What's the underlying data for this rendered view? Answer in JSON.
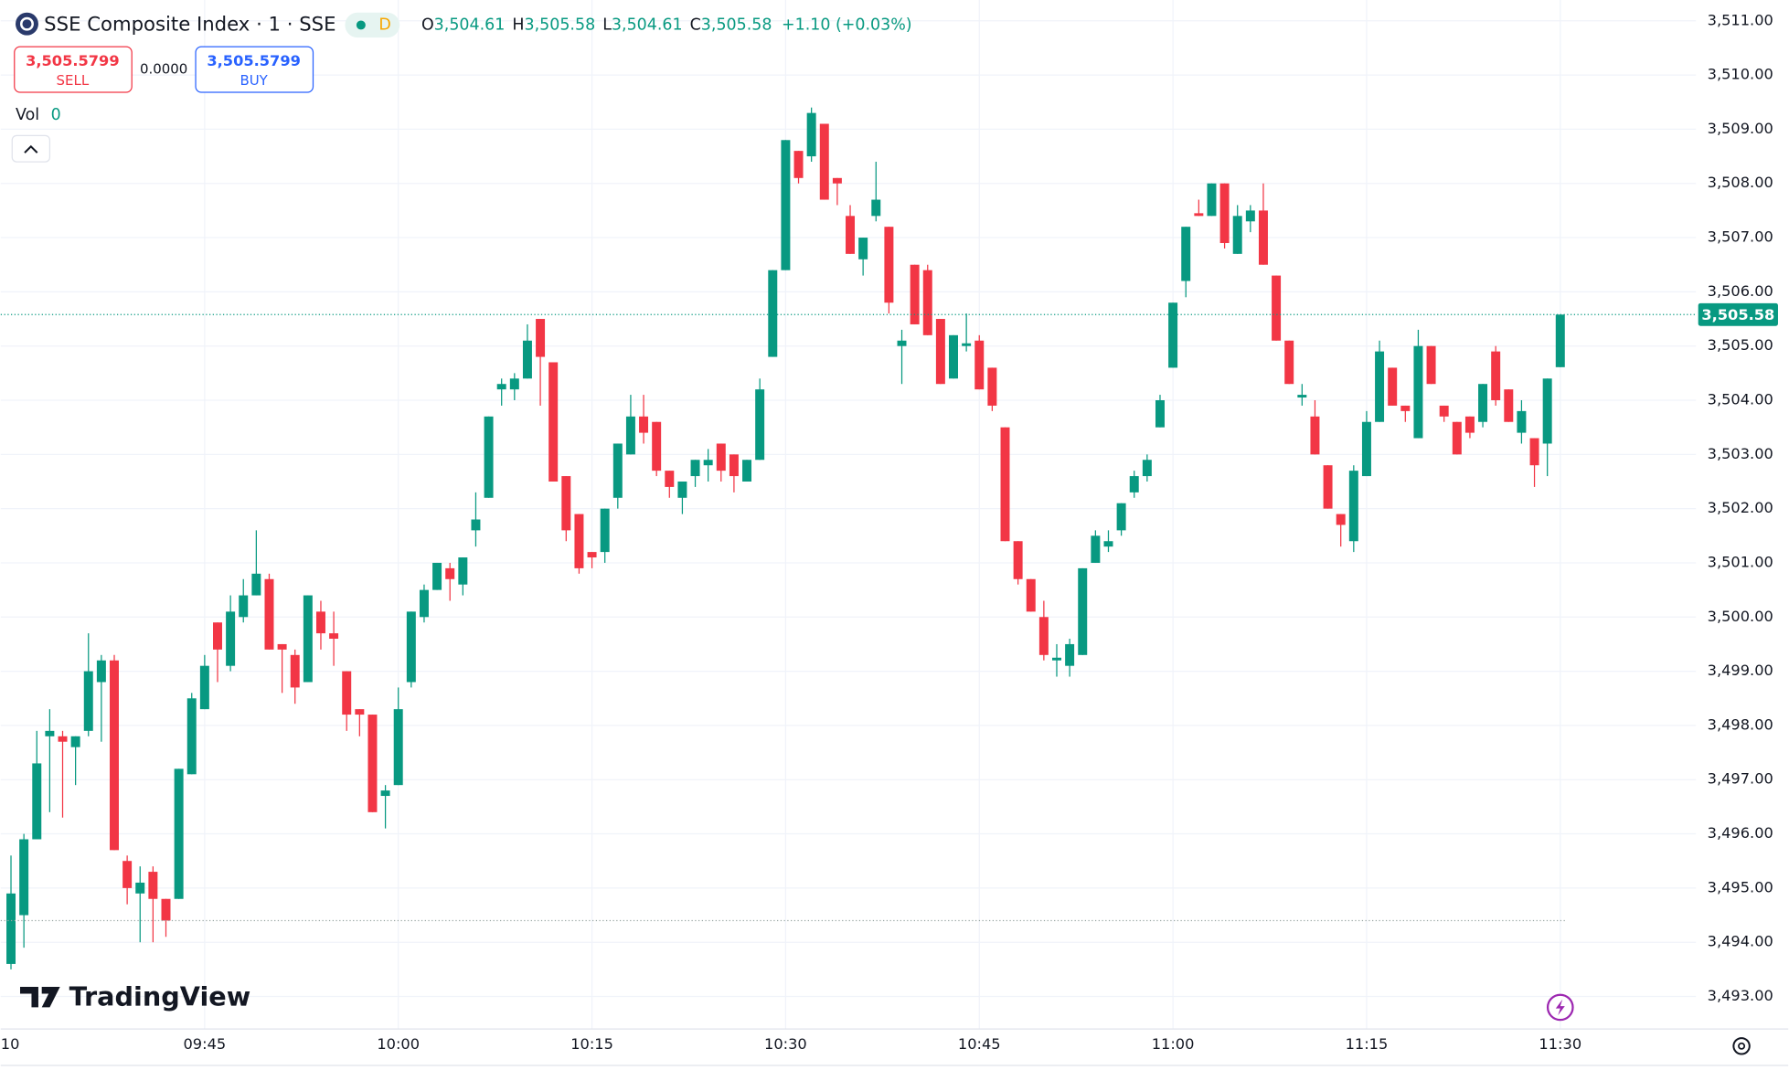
{
  "chart_data": {
    "type": "candlestick",
    "title": "SSE Composite Index · 1 · SSE",
    "up_color": "#089981",
    "down_color": "#f23645",
    "grid": true,
    "categories": [
      "10",
      null,
      null,
      null,
      null,
      null,
      null,
      null,
      null,
      null,
      null,
      null,
      null,
      null,
      null,
      "09:45",
      null,
      null,
      null,
      null,
      null,
      null,
      null,
      null,
      null,
      null,
      null,
      null,
      null,
      null,
      "10:00",
      null,
      null,
      null,
      null,
      null,
      null,
      null,
      null,
      null,
      null,
      null,
      null,
      null,
      null,
      "10:15",
      null,
      null,
      null,
      null,
      null,
      null,
      null,
      null,
      null,
      null,
      null,
      null,
      null,
      null,
      "10:30",
      null,
      null,
      null,
      null,
      null,
      null,
      null,
      null,
      null,
      null,
      null,
      null,
      null,
      null,
      "10:45",
      null,
      null,
      null,
      null,
      null,
      null,
      null,
      null,
      null,
      null,
      null,
      null,
      null,
      null,
      "11:00",
      null,
      null,
      null,
      null,
      null,
      null,
      null,
      null,
      null,
      null,
      null,
      null,
      null,
      null,
      "11:15",
      null,
      null,
      null,
      null,
      null,
      null,
      null,
      null,
      null,
      null,
      null,
      null,
      null,
      null,
      "11:30"
    ],
    "open": [
      3493.6,
      3494.5,
      3495.9,
      3497.8,
      3497.8,
      3497.6,
      3497.9,
      3498.8,
      3499.2,
      3495.5,
      3494.9,
      3495.3,
      3494.8,
      3494.8,
      3497.1,
      3498.3,
      3499.9,
      3499.1,
      3500.0,
      3500.4,
      3500.7,
      3499.5,
      3499.3,
      3498.8,
      3500.1,
      3499.7,
      3499.0,
      3498.3,
      3498.2,
      3496.7,
      3496.9,
      3498.8,
      3500.0,
      3500.5,
      3500.9,
      3500.6,
      3501.6,
      3502.2,
      3504.2,
      3504.2,
      3504.4,
      3505.5,
      3504.7,
      3502.6,
      3501.9,
      3501.2,
      3501.2,
      3502.2,
      3503.0,
      3503.7,
      3503.6,
      3502.7,
      3502.2,
      3502.6,
      3502.8,
      3503.2,
      3503.0,
      3502.5,
      3502.9,
      3504.8,
      3506.4,
      3508.6,
      3508.5,
      3509.1,
      3508.1,
      3507.4,
      3506.6,
      3507.4,
      3507.2,
      3505.0,
      3506.5,
      3506.4,
      3505.5,
      3504.4,
      3505.0,
      3505.1,
      3504.6,
      3503.5,
      3501.4,
      3500.7,
      3500.0,
      3499.2,
      3499.1,
      3499.3,
      3501.0,
      3501.3,
      3501.6,
      3502.3,
      3502.6,
      3503.5,
      3504.6,
      3506.2,
      3507.45,
      3507.4,
      3508.0,
      3506.7,
      3507.3,
      3507.5,
      3506.3,
      3505.1,
      3504.05,
      3503.7,
      3502.8,
      3501.9,
      3501.4,
      3502.6,
      3503.6,
      3504.6,
      3503.9,
      3503.3,
      3505.0,
      3503.9,
      3503.6,
      3503.7,
      3503.6,
      3504.9,
      3504.2,
      3503.4,
      3503.3,
      3503.2,
      3504.61
    ],
    "high": [
      3495.6,
      3496.0,
      3497.9,
      3498.3,
      3497.9,
      3497.8,
      3499.7,
      3499.3,
      3499.3,
      3495.6,
      3495.4,
      3495.4,
      3494.8,
      3497.2,
      3498.6,
      3499.3,
      3499.9,
      3500.4,
      3500.7,
      3501.6,
      3500.8,
      3499.5,
      3499.4,
      3500.4,
      3500.3,
      3500.1,
      3499.0,
      3498.3,
      3498.2,
      3496.9,
      3498.7,
      3500.1,
      3500.6,
      3501.0,
      3501.0,
      3501.1,
      3502.3,
      3503.7,
      3504.4,
      3504.5,
      3505.4,
      3505.5,
      3504.7,
      3502.6,
      3501.9,
      3501.2,
      3502.0,
      3503.2,
      3504.1,
      3504.1,
      3503.6,
      3502.7,
      3502.5,
      3502.9,
      3503.1,
      3503.2,
      3503.0,
      3502.9,
      3504.4,
      3506.4,
      3508.8,
      3508.6,
      3509.4,
      3509.1,
      3508.1,
      3507.6,
      3507.0,
      3508.4,
      3507.2,
      3505.3,
      3506.5,
      3506.5,
      3505.5,
      3505.2,
      3505.6,
      3505.2,
      3504.6,
      3503.5,
      3501.4,
      3500.7,
      3500.3,
      3499.5,
      3499.6,
      3500.9,
      3501.6,
      3501.6,
      3502.1,
      3502.7,
      3503.0,
      3504.1,
      3505.8,
      3507.2,
      3507.7,
      3508.0,
      3508.0,
      3507.6,
      3507.6,
      3508.0,
      3506.3,
      3505.1,
      3504.3,
      3504.0,
      3502.8,
      3501.9,
      3502.8,
      3503.8,
      3505.1,
      3504.6,
      3503.9,
      3505.3,
      3505.0,
      3503.9,
      3503.6,
      3503.7,
      3504.3,
      3505.0,
      3504.2,
      3504.0,
      3503.3,
      3504.4,
      3505.58
    ],
    "low": [
      3493.5,
      3493.9,
      3495.9,
      3496.4,
      3496.3,
      3496.9,
      3497.8,
      3497.7,
      3495.7,
      3494.7,
      3494.0,
      3494.0,
      3494.1,
      3494.8,
      3497.1,
      3498.3,
      3498.8,
      3499.0,
      3499.9,
      3500.4,
      3499.4,
      3498.6,
      3498.4,
      3498.8,
      3499.4,
      3499.1,
      3497.9,
      3497.8,
      3496.4,
      3496.1,
      3496.9,
      3498.7,
      3499.9,
      3500.5,
      3500.3,
      3500.4,
      3501.3,
      3502.2,
      3503.9,
      3504.0,
      3504.4,
      3503.9,
      3502.5,
      3501.4,
      3500.8,
      3500.9,
      3501.0,
      3502.0,
      3503.0,
      3503.2,
      3502.6,
      3502.2,
      3501.9,
      3502.4,
      3502.5,
      3502.5,
      3502.3,
      3502.5,
      3502.9,
      3504.8,
      3506.4,
      3508.0,
      3508.4,
      3507.7,
      3507.6,
      3506.7,
      3506.3,
      3507.3,
      3505.6,
      3504.3,
      3505.4,
      3505.2,
      3504.3,
      3504.4,
      3504.9,
      3504.2,
      3503.8,
      3501.4,
      3500.6,
      3500.1,
      3499.2,
      3498.9,
      3498.9,
      3499.3,
      3501.0,
      3501.2,
      3501.5,
      3502.2,
      3502.5,
      3503.5,
      3504.6,
      3505.9,
      3507.4,
      3507.4,
      3506.8,
      3506.7,
      3507.1,
      3506.5,
      3505.1,
      3504.3,
      3503.9,
      3503.0,
      3502.0,
      3501.3,
      3501.2,
      3502.6,
      3503.6,
      3503.9,
      3503.6,
      3503.3,
      3504.3,
      3503.6,
      3503.0,
      3503.3,
      3503.5,
      3503.9,
      3503.6,
      3503.2,
      3502.4,
      3502.6,
      3504.61
    ],
    "close": [
      3494.9,
      3495.9,
      3497.3,
      3497.9,
      3497.7,
      3497.8,
      3499.0,
      3499.2,
      3495.7,
      3495.0,
      3495.1,
      3494.8,
      3494.4,
      3497.2,
      3498.5,
      3499.1,
      3499.4,
      3500.1,
      3500.4,
      3500.8,
      3499.4,
      3499.4,
      3498.7,
      3500.4,
      3499.7,
      3499.6,
      3498.2,
      3498.2,
      3496.4,
      3496.8,
      3498.3,
      3500.1,
      3500.5,
      3501.0,
      3500.7,
      3501.1,
      3501.8,
      3503.7,
      3504.3,
      3504.4,
      3505.1,
      3504.8,
      3502.5,
      3501.6,
      3500.9,
      3501.1,
      3502.0,
      3503.2,
      3503.7,
      3503.4,
      3502.7,
      3502.4,
      3502.5,
      3502.9,
      3502.9,
      3502.7,
      3502.6,
      3502.9,
      3504.2,
      3506.4,
      3508.8,
      3508.1,
      3509.3,
      3507.7,
      3508.0,
      3506.7,
      3507.0,
      3507.7,
      3505.8,
      3505.1,
      3505.4,
      3505.2,
      3504.3,
      3505.2,
      3505.05,
      3504.2,
      3503.9,
      3501.4,
      3500.7,
      3500.1,
      3499.3,
      3499.25,
      3499.5,
      3500.9,
      3501.5,
      3501.4,
      3502.1,
      3502.6,
      3502.9,
      3504.0,
      3505.8,
      3507.2,
      3507.4,
      3508.0,
      3506.9,
      3507.4,
      3507.5,
      3506.5,
      3505.1,
      3504.3,
      3504.1,
      3503.0,
      3502.0,
      3501.7,
      3502.7,
      3503.6,
      3504.9,
      3503.9,
      3503.8,
      3505.0,
      3504.3,
      3503.7,
      3503.0,
      3503.4,
      3504.3,
      3504.0,
      3503.6,
      3503.8,
      3502.8,
      3504.4,
      3505.58
    ],
    "ylim": [
      3492.4,
      3511.3
    ],
    "yticks": [
      {
        "value": 3493,
        "label": "3,493.00"
      },
      {
        "value": 3494,
        "label": "3,494.00"
      },
      {
        "value": 3495,
        "label": "3,495.00"
      },
      {
        "value": 3496,
        "label": "3,496.00"
      },
      {
        "value": 3497,
        "label": "3,497.00"
      },
      {
        "value": 3498,
        "label": "3,498.00"
      },
      {
        "value": 3499,
        "label": "3,499.00"
      },
      {
        "value": 3500,
        "label": "3,500.00"
      },
      {
        "value": 3501,
        "label": "3,501.00"
      },
      {
        "value": 3502,
        "label": "3,502.00"
      },
      {
        "value": 3503,
        "label": "3,503.00"
      },
      {
        "value": 3504,
        "label": "3,504.00"
      },
      {
        "value": 3505,
        "label": "3,505.00"
      },
      {
        "value": 3506,
        "label": "3,506.00"
      },
      {
        "value": 3507,
        "label": "3,507.00"
      },
      {
        "value": 3508,
        "label": "3,508.00"
      },
      {
        "value": 3509,
        "label": "3,509.00"
      },
      {
        "value": 3510,
        "label": "3,510.00"
      },
      {
        "value": 3511,
        "label": "3,511.00"
      }
    ],
    "last_price": {
      "value": 3505.58,
      "label": "3,505.58"
    },
    "reference_line": 3494.4
  },
  "legend": {
    "interval_badge": "D",
    "o_label": "O",
    "o": "3,504.61",
    "h_label": "H",
    "h": "3,505.58",
    "l_label": "L",
    "l": "3,504.61",
    "c_label": "C",
    "c": "3,505.58",
    "change": "+1.10 (+0.03%)"
  },
  "trade": {
    "sell_price": "3,505.5799",
    "sell": "SELL",
    "spread": "0.0000",
    "buy_price": "3,505.5799",
    "buy": "BUY"
  },
  "volume": {
    "label": "Vol",
    "value": "0"
  },
  "brand": "TradingView"
}
